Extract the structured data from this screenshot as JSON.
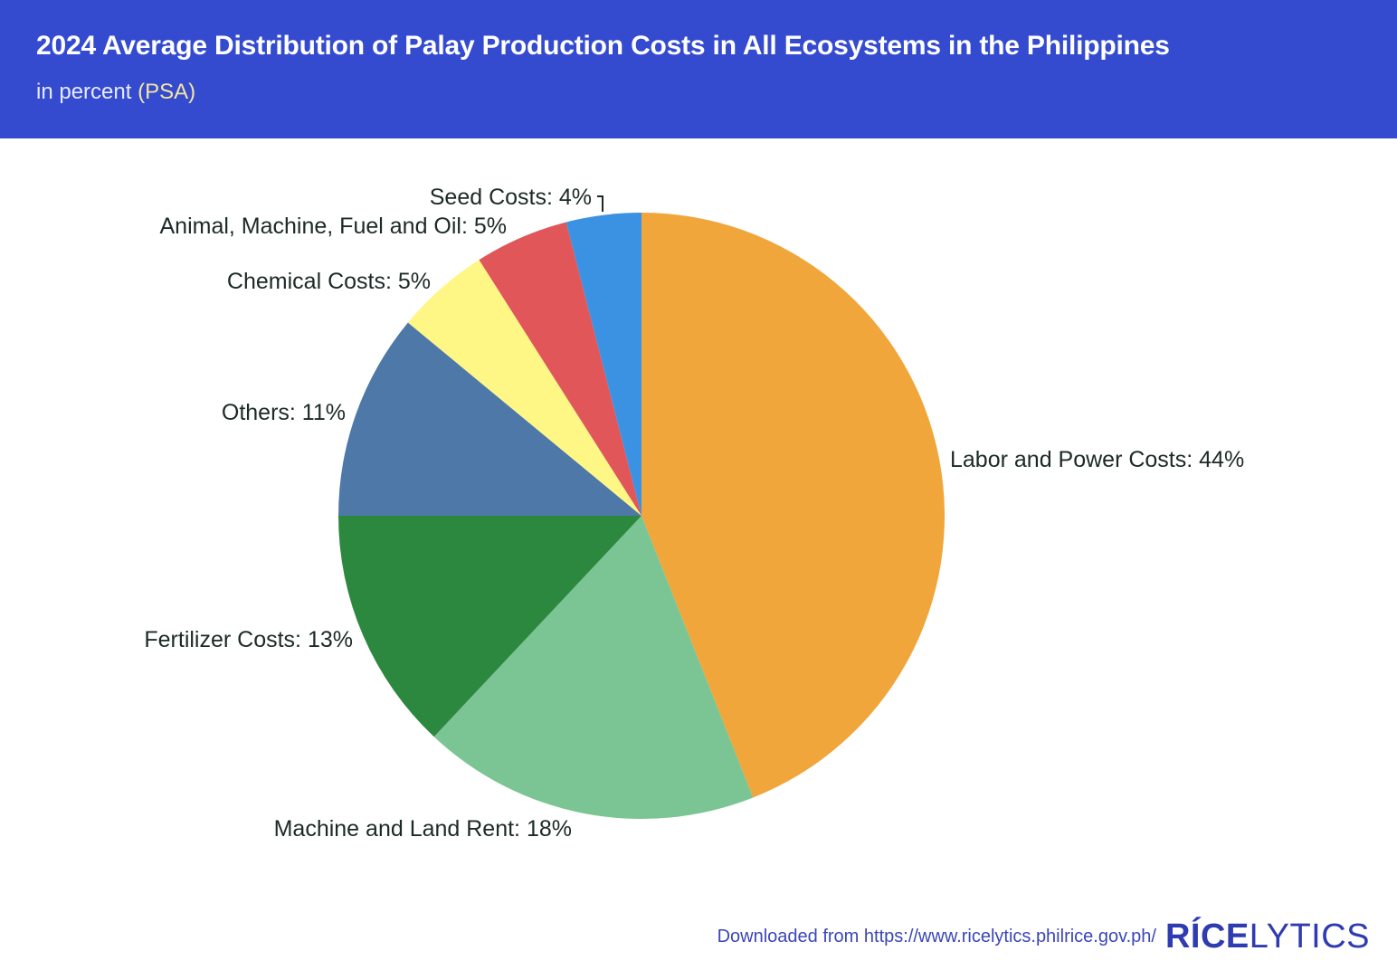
{
  "header": {
    "title": "2024 Average Distribution of Palay Production Costs in All Ecosystems in the Philippines",
    "subtitle_prefix": "in percent",
    "source": "(PSA)",
    "background": "#344bd0"
  },
  "chart_data": {
    "type": "pie",
    "title": "2024 Average Distribution of Palay Production Costs in All Ecosystems in the Philippines",
    "subtitle": "in percent (PSA)",
    "slices": [
      {
        "label": "Labor and Power Costs",
        "value": 44,
        "color": "#f0a63b",
        "text": "Labor and Power Costs: 44%"
      },
      {
        "label": "Machine and Land Rent",
        "value": 18,
        "color": "#7ac593",
        "text": "Machine and Land Rent: 18%"
      },
      {
        "label": "Fertilizer Costs",
        "value": 13,
        "color": "#2c883f",
        "text": "Fertilizer Costs: 13%"
      },
      {
        "label": "Others",
        "value": 11,
        "color": "#4d78a8",
        "text": "Others: 11%"
      },
      {
        "label": "Chemical Costs",
        "value": 5,
        "color": "#fff785",
        "text": "Chemical Costs: 5%"
      },
      {
        "label": "Animal, Machine, Fuel and Oil",
        "value": 5,
        "color": "#e05659",
        "text": "Animal, Machine, Fuel and Oil: 5%"
      },
      {
        "label": "Seed Costs",
        "value": 4,
        "color": "#3c92e2",
        "text": "Seed Costs: 4%"
      }
    ]
  },
  "footer": {
    "download_text": "Downloaded from https://www.ricelytics.philrice.gov.ph/",
    "logo_bold": "RÍCE",
    "logo_light": "LYTICS"
  }
}
